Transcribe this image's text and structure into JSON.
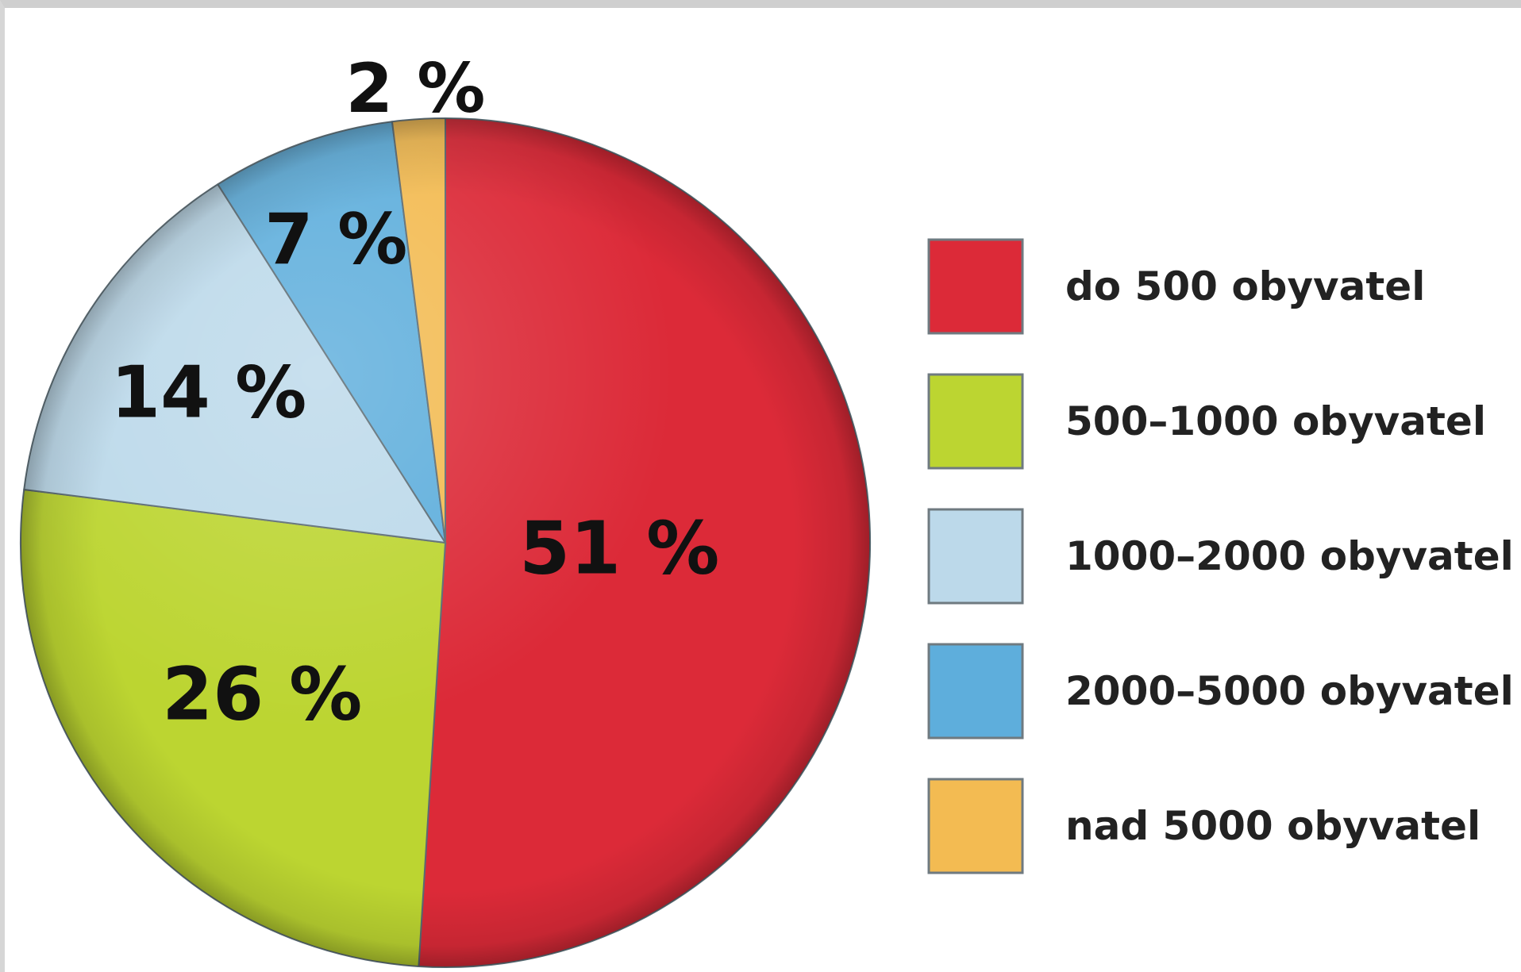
{
  "chart_data": {
    "type": "pie",
    "categories": [
      "do 500 obyvatel",
      "500–1000 obyvatel",
      "1000–2000 obyvatel",
      "2000–5000 obyvatel",
      "nad 5000 obyvatel"
    ],
    "values": [
      51,
      26,
      14,
      7,
      2
    ],
    "labels": [
      "51 %",
      "26 %",
      "14 %",
      "7 %",
      "2 %"
    ],
    "colors": [
      "#dc2a38",
      "#bcd531",
      "#bcd9ea",
      "#5eaedc",
      "#f3bb52"
    ],
    "legend": "right",
    "title": ""
  }
}
